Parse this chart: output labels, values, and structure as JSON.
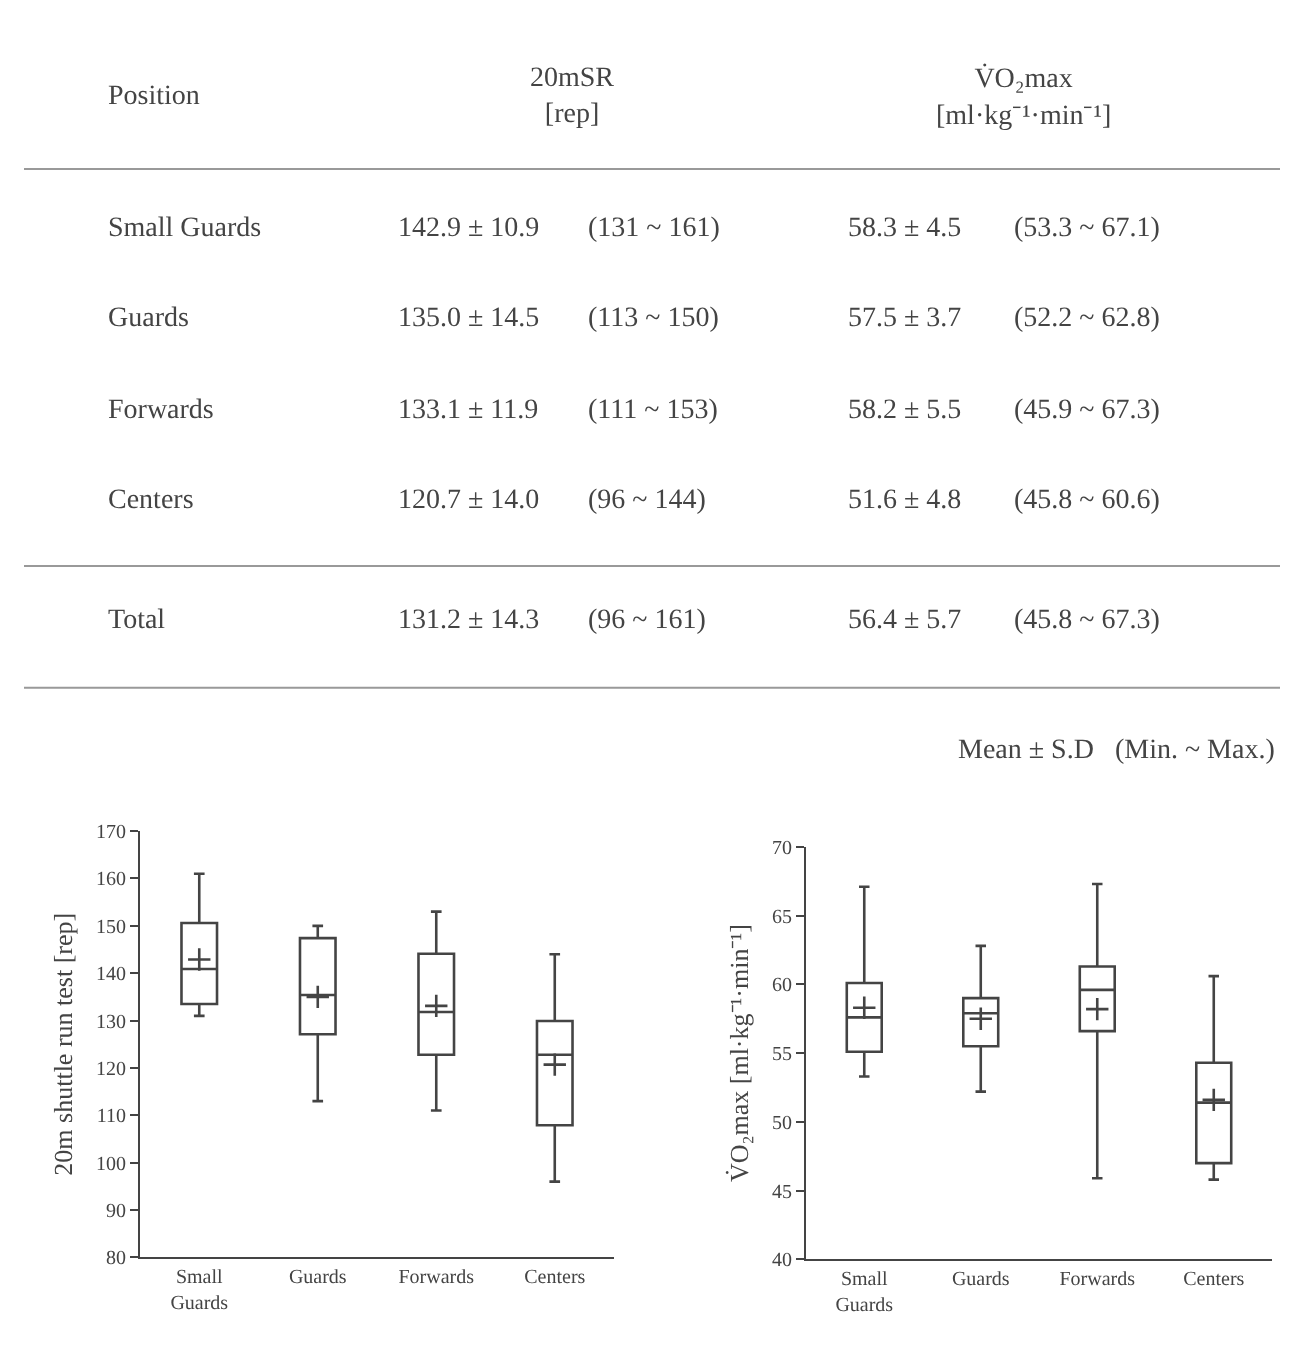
{
  "chart_data": [
    {
      "type": "other",
      "annotations": [
        "Position",
        "20mSR\n[rep]",
        "V̇O₂max\n[ml·kg⁻¹·min⁻¹]",
        "Small Guards",
        "142.9 ± 10.9",
        "(131 ~ 161)",
        "58.3 ± 4.5",
        "(53.3 ~ 67.1)",
        "Guards",
        "135.0 ± 14.5",
        "(113 ~ 150)",
        "57.5 ± 3.7",
        "(52.2 ~ 62.8)",
        "Forwards",
        "133.1 ± 11.9",
        "(111 ~ 153)",
        "58.2 ± 5.5",
        "(45.9 ~ 67.3)",
        "Centers",
        "120.7 ± 14.0",
        "(96 ~ 144)",
        "51.6 ± 4.8",
        "(45.8 ~ 60.6)",
        "Total",
        "131.2 ± 14.3",
        "(96 ~ 161)",
        "56.4 ± 5.7",
        "(45.8 ~ 67.3)",
        "Mean ± S.D   (Min. ~ Max.)"
      ]
    },
    {
      "type": "box",
      "ylabel": "20m shuttle run test [rep]",
      "categories": [
        "Small Guards",
        "Guards",
        "Forwards",
        "Centers"
      ],
      "color": "#444444",
      "marker": "cross",
      "boxes": [
        {
          "low": 131,
          "q1": 133.5,
          "median": 140.9,
          "q3": 150.6,
          "high": 161,
          "mean": 142.9
        },
        {
          "low": 113,
          "q1": 127.1,
          "median": 135.4,
          "q3": 147.4,
          "high": 150,
          "mean": 135.0
        },
        {
          "low": 111,
          "q1": 122.8,
          "median": 131.8,
          "q3": 144.1,
          "high": 153,
          "mean": 133.1
        },
        {
          "low": 96,
          "q1": 107.9,
          "median": 122.8,
          "q3": 129.9,
          "high": 144,
          "mean": 120.7
        }
      ],
      "ylim": [
        80,
        170
      ],
      "yticks": [
        80,
        90,
        100,
        110,
        120,
        130,
        140,
        150,
        160,
        170
      ]
    },
    {
      "type": "box",
      "ylabel": "V̇O₂max [ml·kg⁻¹·min⁻¹]",
      "categories": [
        "Small Guards",
        "Guards",
        "Forwards",
        "Centers"
      ],
      "color": "#444444",
      "marker": "cross",
      "boxes": [
        {
          "low": 53.3,
          "q1": 55.1,
          "median": 57.6,
          "q3": 60.1,
          "high": 67.1,
          "mean": 58.3
        },
        {
          "low": 52.2,
          "q1": 55.5,
          "median": 57.9,
          "q3": 59.0,
          "high": 62.8,
          "mean": 57.5
        },
        {
          "low": 45.9,
          "q1": 56.6,
          "median": 59.6,
          "q3": 61.3,
          "high": 67.3,
          "mean": 58.2
        },
        {
          "low": 45.8,
          "q1": 47.0,
          "median": 51.4,
          "q3": 54.3,
          "high": 60.6,
          "mean": 51.6
        }
      ],
      "ylim": [
        40,
        70
      ],
      "yticks": [
        40,
        45,
        50,
        55,
        60,
        65,
        70
      ]
    }
  ]
}
